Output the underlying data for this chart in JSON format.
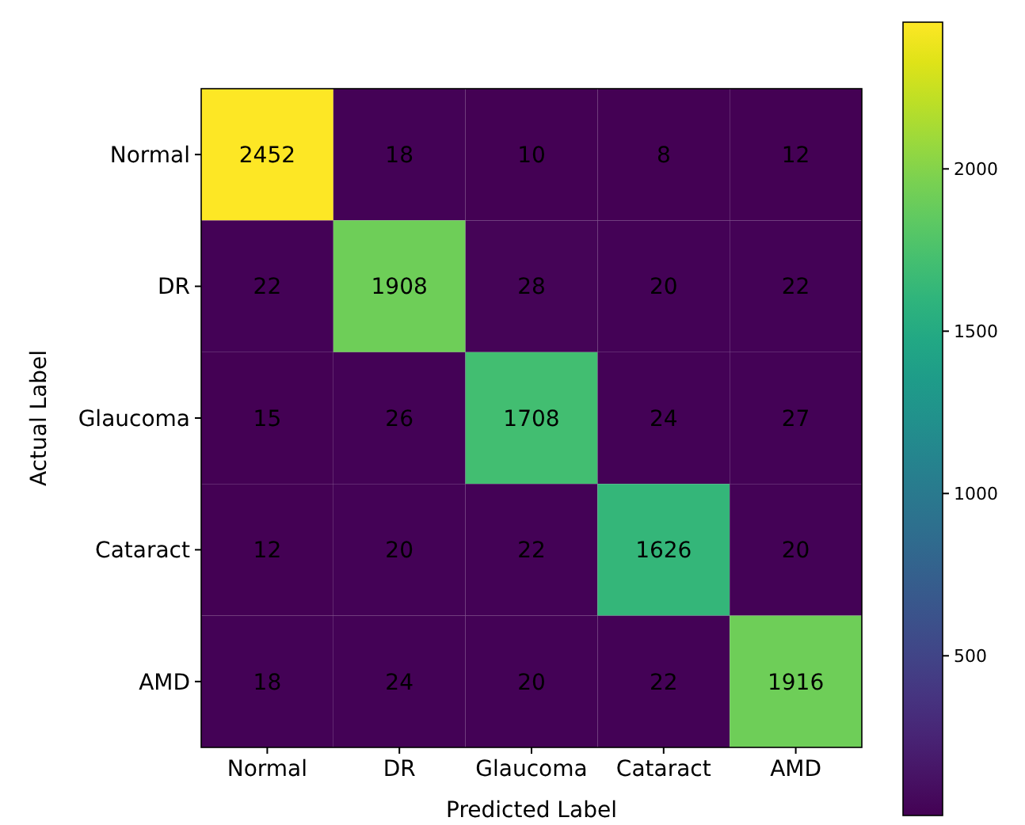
{
  "chart_data": {
    "type": "heatmap",
    "xlabel": "Predicted Label",
    "ylabel": "Actual Label",
    "categories": [
      "Normal",
      "DR",
      "Glaucoma",
      "Cataract",
      "AMD"
    ],
    "y_categories": [
      "Normal",
      "DR",
      "Glaucoma",
      "Cataract",
      "AMD"
    ],
    "cells": [
      [
        2452,
        18,
        10,
        8,
        12
      ],
      [
        22,
        1908,
        28,
        20,
        22
      ],
      [
        15,
        26,
        1708,
        24,
        27
      ],
      [
        12,
        20,
        22,
        1626,
        20
      ],
      [
        18,
        24,
        20,
        22,
        1916
      ]
    ],
    "clim": [
      8,
      2452
    ],
    "cticks": [
      500,
      1000,
      1500,
      2000
    ],
    "data_labels": true
  }
}
